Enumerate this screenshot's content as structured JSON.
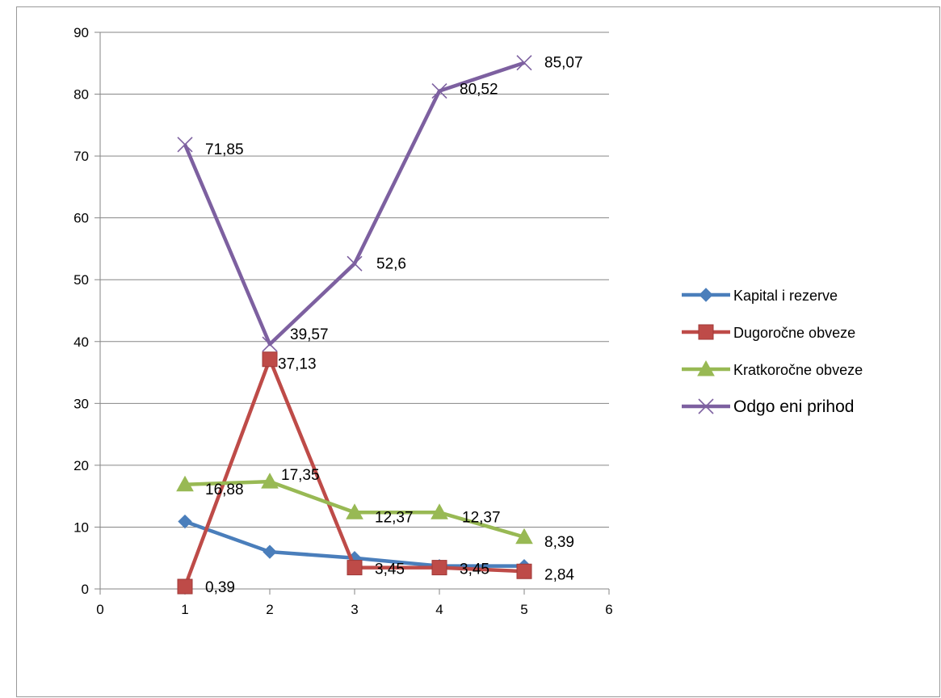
{
  "chart_data": {
    "type": "line",
    "x": [
      1,
      2,
      3,
      4,
      5
    ],
    "xlim": [
      0,
      6
    ],
    "ylim": [
      0,
      90
    ],
    "xticks": [
      0,
      1,
      2,
      3,
      4,
      5,
      6
    ],
    "yticks": [
      0,
      10,
      20,
      30,
      40,
      50,
      60,
      70,
      80,
      90
    ],
    "grid": "horizontal",
    "legend_position": "right",
    "series": [
      {
        "name": "Kapital i rezerve",
        "values": [
          10.9,
          6.0,
          5.0,
          3.7,
          3.7
        ],
        "color": "#4a7ebb",
        "marker": "diamond",
        "labels": []
      },
      {
        "name": "Dugoročne obveze",
        "values": [
          0.39,
          37.13,
          3.45,
          3.45,
          2.84
        ],
        "color": "#be4b48",
        "marker": "square",
        "labels": [
          "0,39",
          "37,13",
          "3,45",
          "3,45",
          "2,84"
        ]
      },
      {
        "name": "Kratkoročne obveze",
        "values": [
          16.88,
          17.35,
          12.37,
          12.37,
          8.39
        ],
        "color": "#98b954",
        "marker": "triangle",
        "labels": [
          "16,88",
          "17,35",
          "12,37",
          "12,37",
          "8,39"
        ]
      },
      {
        "name": "Odgo  eni prihod",
        "values": [
          71.85,
          39.57,
          52.6,
          80.52,
          85.07
        ],
        "color": "#7d60a0",
        "marker": "x",
        "labels": [
          "71,85",
          "39,57",
          "52,6",
          "80,52",
          "85,07"
        ]
      }
    ]
  }
}
